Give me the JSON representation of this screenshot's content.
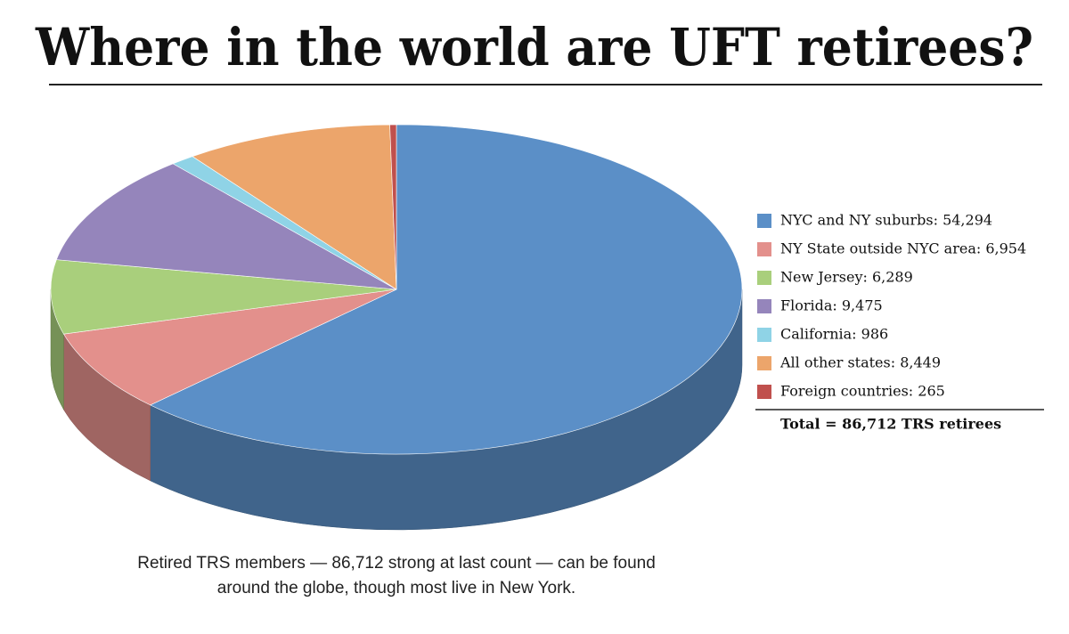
{
  "chart_data": {
    "type": "pie3d",
    "title": "Where in the world are UFT retirees?",
    "categories": [
      "NYC and NY suburbs: 54,294",
      "NY State outside NYC area: 6,954",
      "New Jersey: 6,289",
      "Florida: 9,475",
      "California: 986",
      "All other states: 8,449",
      "Foreign countries: 265"
    ],
    "values": [
      54294,
      6954,
      6289,
      9475,
      986,
      8449,
      265
    ],
    "colors": [
      "#5b8fc7",
      "#e3908c",
      "#a9cf7c",
      "#9585bb",
      "#8fd3e6",
      "#eca56b",
      "#c0504d"
    ],
    "total": "Total = 86,712 TRS retirees",
    "caption": [
      "Retired TRS members — 86,712 strong at last count — can be found",
      "around the globe, though most live in New York."
    ]
  }
}
